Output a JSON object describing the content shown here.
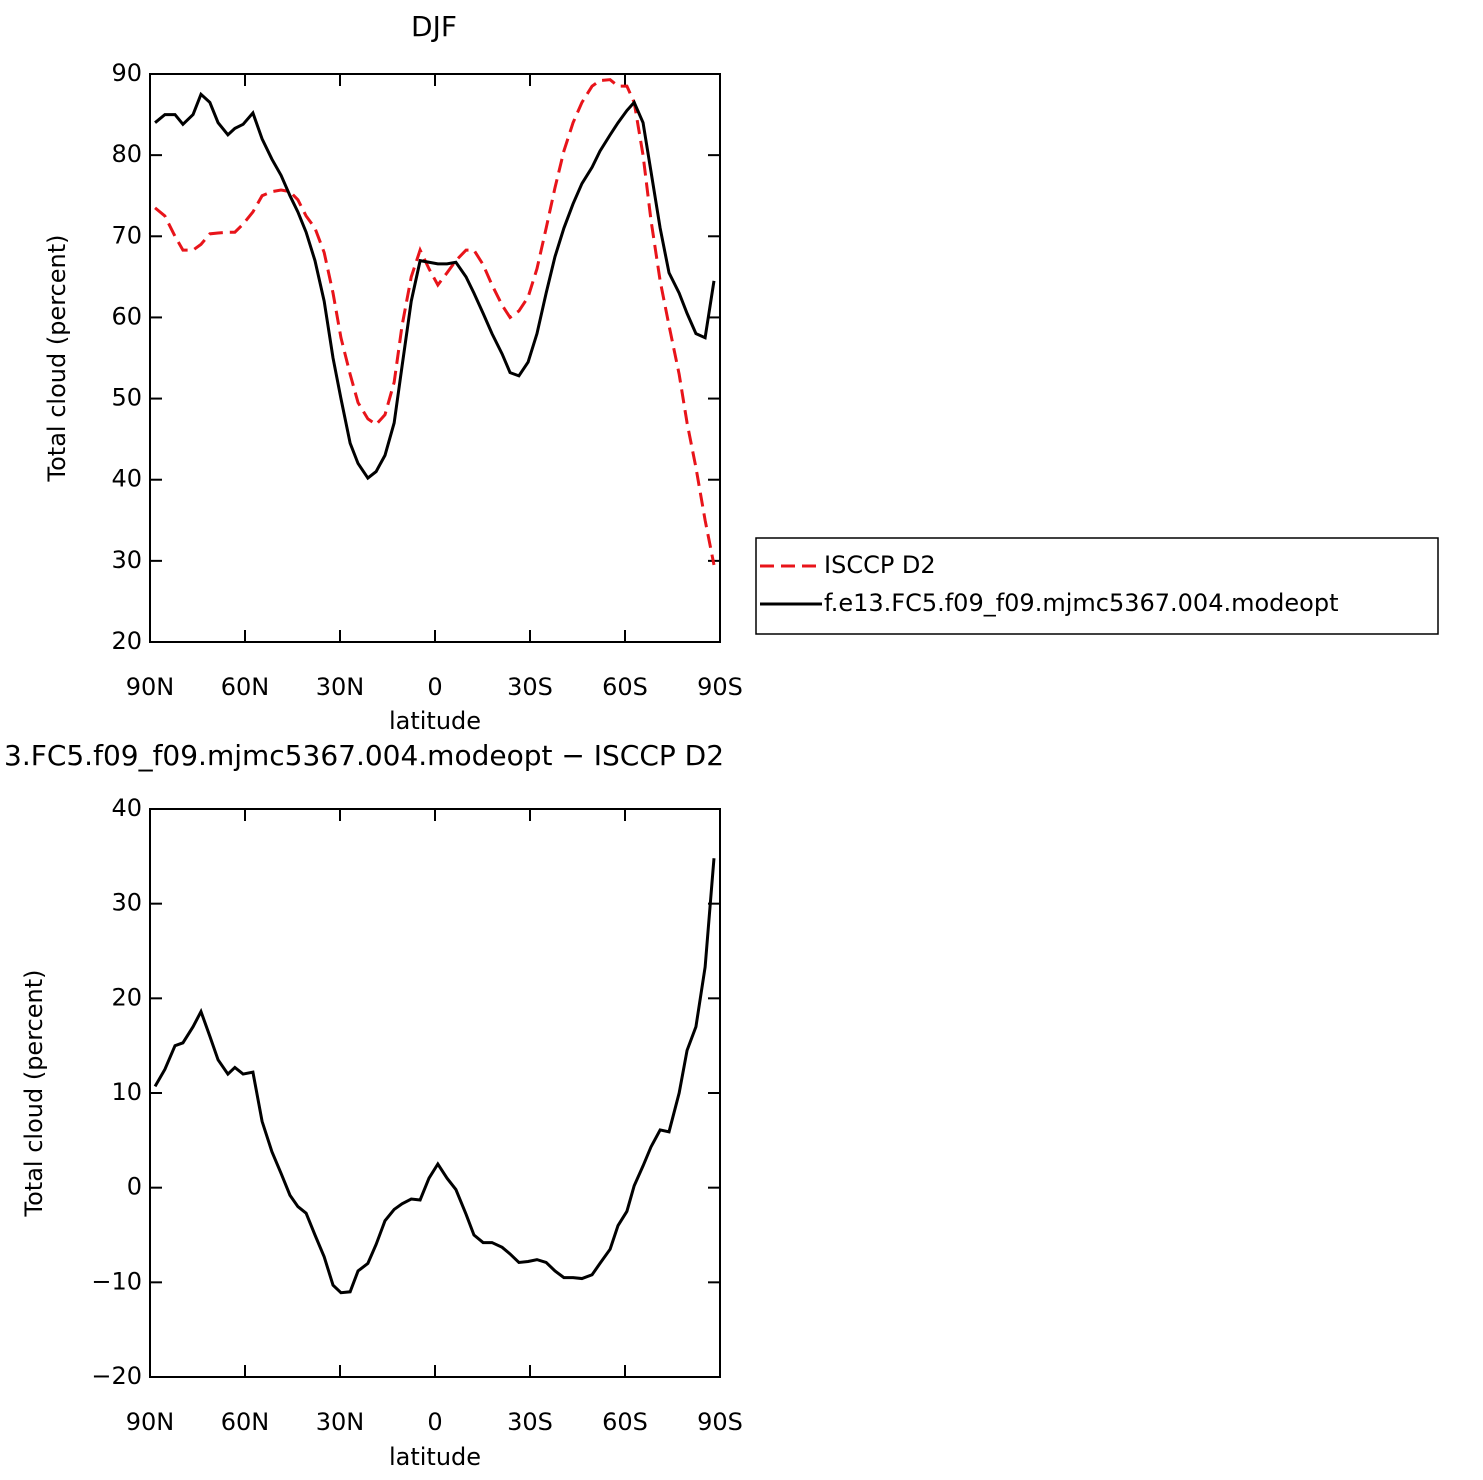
{
  "chart_data": [
    {
      "type": "line",
      "title": "DJF",
      "xlabel": "latitude",
      "ylabel": "Total cloud (percent)",
      "xlim": [
        90,
        -90
      ],
      "xticks": [
        {
          "value": 90,
          "label": "90N"
        },
        {
          "value": 60,
          "label": "60N"
        },
        {
          "value": 30,
          "label": "30N"
        },
        0,
        {
          "value": -30,
          "label": "30S"
        },
        {
          "value": -60,
          "label": "60S"
        },
        {
          "value": -90,
          "label": "90S"
        }
      ],
      "ylim": [
        20,
        90
      ],
      "yticks": [
        20,
        30,
        40,
        50,
        60,
        70,
        80,
        90
      ],
      "legend": "right",
      "x": [
        88.4,
        85.3,
        82.1,
        79.6,
        76.4,
        73.9,
        71.1,
        68.5,
        65.4,
        63.2,
        60.6,
        57.5,
        54.6,
        51.5,
        48.6,
        45.8,
        43.3,
        40.7,
        37.9,
        35.0,
        32.2,
        29.7,
        26.8,
        24.3,
        21.2,
        18.6,
        15.8,
        12.9,
        10.4,
        7.5,
        4.7,
        1.9,
        -0.9,
        -3.8,
        -6.6,
        -9.8,
        -12.3,
        -15.2,
        -18.0,
        -21.2,
        -23.7,
        -26.5,
        -29.4,
        -32.2,
        -35.1,
        -37.9,
        -40.7,
        -43.6,
        -46.4,
        -49.6,
        -52.1,
        -55.3,
        -57.8,
        -60.6,
        -62.9,
        -65.7,
        -68.2,
        -71.1,
        -73.9,
        -77.1,
        -79.6,
        -82.4,
        -85.3,
        -88.1
      ],
      "series": [
        {
          "name": "ISCCP D2",
          "color": "#e8141a",
          "linestyle": "dashed",
          "values": [
            73.5,
            72.5,
            70,
            68.3,
            68.3,
            69,
            70.3,
            70.4,
            70.5,
            70.5,
            71.5,
            73,
            75,
            75.5,
            75.7,
            75.5,
            74.5,
            72.5,
            71,
            68,
            63,
            57.5,
            53,
            49.5,
            47.5,
            46.8,
            48,
            52,
            59,
            65,
            68.3,
            66,
            64,
            65.5,
            67,
            68.3,
            68.3,
            66.5,
            64,
            61.5,
            60,
            60.8,
            62.5,
            66,
            71,
            76,
            80.5,
            84,
            86.5,
            88.5,
            89.2,
            89.3,
            88.5,
            88.5,
            86.5,
            80,
            72,
            64.5,
            59,
            53,
            47,
            41.5,
            35,
            29.5
          ]
        },
        {
          "name": "f.e13.FC5.f09_f09.mjmc5367.004.modeopt",
          "color": "#000000",
          "linestyle": "solid",
          "values": [
            84,
            85,
            85,
            83.8,
            85,
            87.5,
            86.5,
            84,
            82.5,
            83.3,
            83.8,
            85.2,
            82,
            79.5,
            77.5,
            75,
            73,
            70.5,
            67,
            62,
            55,
            50,
            44.5,
            42,
            40.2,
            41,
            43,
            47,
            54,
            62,
            67,
            66.8,
            66.6,
            66.6,
            66.8,
            65,
            63,
            60.5,
            58,
            55.5,
            53.2,
            52.8,
            54.5,
            58,
            63,
            67.5,
            71,
            74,
            76.5,
            78.5,
            80.5,
            82.5,
            84,
            85.5,
            86.5,
            84,
            78,
            71,
            65.5,
            63,
            60.5,
            58,
            57.5,
            64.5
          ]
        }
      ]
    },
    {
      "type": "line",
      "title": "3.FC5.f09_f09.mjmc5367.004.modeopt − ISCCP D2",
      "xlabel": "latitude",
      "ylabel": "Total cloud (percent)",
      "xlim": [
        90,
        -90
      ],
      "xticks": [
        {
          "value": 90,
          "label": "90N"
        },
        {
          "value": 60,
          "label": "60N"
        },
        {
          "value": 30,
          "label": "30N"
        },
        0,
        {
          "value": -30,
          "label": "30S"
        },
        {
          "value": -60,
          "label": "60S"
        },
        {
          "value": -90,
          "label": "90S"
        }
      ],
      "ylim": [
        -20,
        40
      ],
      "yticks": [
        {
          "value": -20,
          "label": "−20"
        },
        {
          "value": -10,
          "label": "−10"
        },
        0,
        10,
        20,
        30,
        40
      ],
      "x": [
        88.4,
        85.3,
        82.1,
        79.6,
        76.4,
        73.9,
        71.1,
        68.5,
        65.4,
        63.2,
        60.6,
        57.5,
        54.6,
        51.5,
        48.6,
        45.8,
        43.3,
        40.7,
        37.9,
        35.0,
        32.2,
        29.7,
        26.8,
        24.3,
        21.2,
        18.6,
        15.8,
        12.9,
        10.4,
        7.5,
        4.7,
        1.9,
        -0.9,
        -3.8,
        -6.6,
        -9.8,
        -12.3,
        -15.2,
        -18.0,
        -21.2,
        -23.7,
        -26.5,
        -29.4,
        -32.2,
        -35.1,
        -37.9,
        -40.7,
        -43.6,
        -46.4,
        -49.6,
        -52.1,
        -55.3,
        -57.8,
        -60.6,
        -62.9,
        -65.7,
        -68.2,
        -71.1,
        -73.9,
        -77.1,
        -79.6,
        -82.4,
        -85.3,
        -88.1
      ],
      "series": [
        {
          "color": "#000000",
          "linestyle": "solid",
          "values": [
            10.7,
            12.5,
            15,
            15.3,
            17,
            18.6,
            16,
            13.5,
            12,
            12.7,
            12,
            12.2,
            7,
            3.8,
            1.5,
            -0.8,
            -2,
            -2.7,
            -5,
            -7.3,
            -10.3,
            -11.1,
            -11,
            -8.8,
            -8,
            -6,
            -3.5,
            -2.3,
            -1.7,
            -1.2,
            -1.3,
            1,
            2.5,
            1,
            -0.2,
            -2.8,
            -5,
            -5.8,
            -5.8,
            -6.3,
            -7,
            -7.9,
            -7.8,
            -7.6,
            -7.9,
            -8.8,
            -9.5,
            -9.5,
            -9.6,
            -9.2,
            -8,
            -6.5,
            -4,
            -2.5,
            0.2,
            2.3,
            4.3,
            6.1,
            5.9,
            10,
            14.5,
            17,
            23.3,
            34.8
          ]
        }
      ]
    }
  ]
}
